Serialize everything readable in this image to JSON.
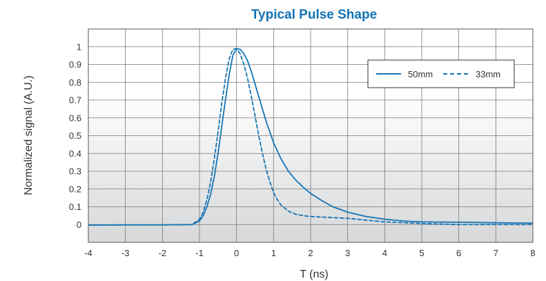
{
  "chart_data": {
    "type": "line",
    "title": "Typical Pulse Shape",
    "xlabel": "T (ns)",
    "ylabel": "Normalized signal (A.U.)",
    "xlim": [
      -4,
      8
    ],
    "ylim": [
      -0.1,
      1.1
    ],
    "xticks": [
      "-4",
      "-3",
      "-2",
      "-1",
      "0",
      "1",
      "2",
      "3",
      "4",
      "5",
      "6",
      "7",
      "8"
    ],
    "yticks": [
      "0",
      "0.1",
      "0.2",
      "0.3",
      "0.4",
      "0.5",
      "0.6",
      "0.7",
      "0.8",
      "0.9",
      "1"
    ],
    "grid": true,
    "legend": "top-right",
    "colors": {
      "line": "#1473b4",
      "title": "#1473b4",
      "grid": "#777777"
    },
    "series": [
      {
        "name": "50mm",
        "style": "solid",
        "x": [
          -4,
          -3,
          -2,
          -1.2,
          -1.1,
          -1.0,
          -0.9,
          -0.8,
          -0.7,
          -0.6,
          -0.5,
          -0.4,
          -0.3,
          -0.2,
          -0.1,
          0,
          0.1,
          0.2,
          0.3,
          0.4,
          0.5,
          0.6,
          0.7,
          0.8,
          0.9,
          1.0,
          1.2,
          1.4,
          1.6,
          1.8,
          2.0,
          2.3,
          2.6,
          3.0,
          3.5,
          4.0,
          4.5,
          5.0,
          6.0,
          7.0,
          8.0
        ],
        "y": [
          -0.003,
          -0.002,
          -0.002,
          0.0,
          0.01,
          0.02,
          0.05,
          0.1,
          0.17,
          0.27,
          0.4,
          0.55,
          0.7,
          0.84,
          0.95,
          0.99,
          0.985,
          0.96,
          0.92,
          0.86,
          0.79,
          0.72,
          0.65,
          0.58,
          0.52,
          0.46,
          0.37,
          0.3,
          0.25,
          0.21,
          0.175,
          0.135,
          0.1,
          0.07,
          0.045,
          0.03,
          0.02,
          0.015,
          0.013,
          0.01,
          0.008
        ]
      },
      {
        "name": "33mm",
        "style": "dashed",
        "x": [
          -4,
          -3,
          -2,
          -1.2,
          -1.1,
          -1.0,
          -0.9,
          -0.8,
          -0.7,
          -0.6,
          -0.5,
          -0.4,
          -0.3,
          -0.2,
          -0.1,
          0,
          0.1,
          0.2,
          0.3,
          0.4,
          0.5,
          0.6,
          0.7,
          0.8,
          0.9,
          1.0,
          1.1,
          1.2,
          1.4,
          1.6,
          1.8,
          2.0,
          2.5,
          3.0,
          3.5,
          4.0,
          5.0,
          6.0,
          7.0,
          8.0
        ],
        "y": [
          -0.003,
          -0.002,
          -0.002,
          0.0,
          0.015,
          0.03,
          0.07,
          0.14,
          0.24,
          0.37,
          0.52,
          0.68,
          0.82,
          0.93,
          0.985,
          0.99,
          0.96,
          0.9,
          0.82,
          0.72,
          0.61,
          0.5,
          0.4,
          0.31,
          0.24,
          0.18,
          0.14,
          0.11,
          0.075,
          0.058,
          0.05,
          0.045,
          0.04,
          0.035,
          0.025,
          0.015,
          0.006,
          0.0,
          0.0,
          0.0
        ]
      }
    ]
  }
}
